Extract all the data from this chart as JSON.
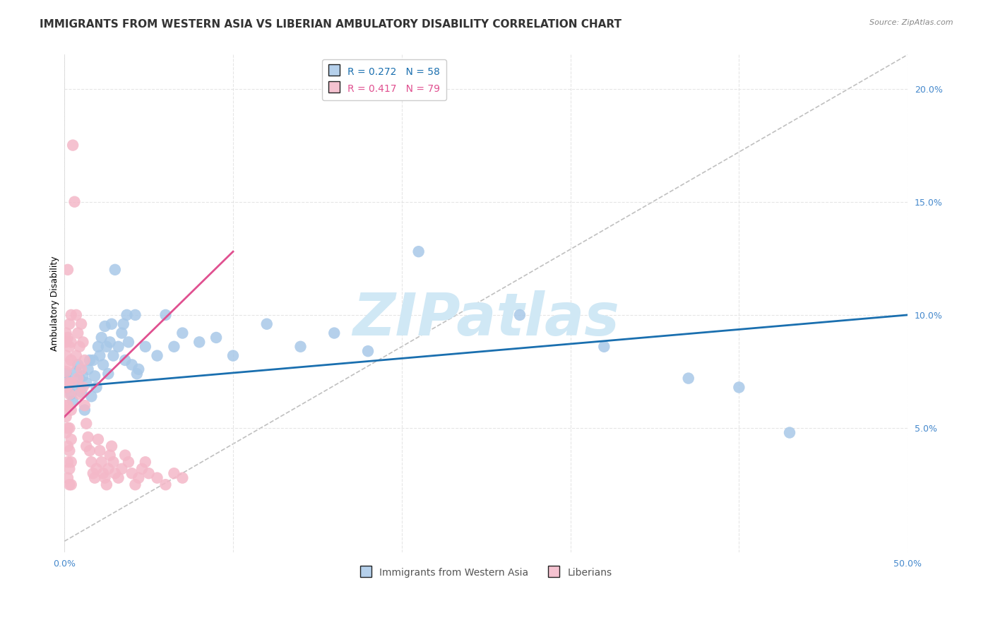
{
  "title": "IMMIGRANTS FROM WESTERN ASIA VS LIBERIAN AMBULATORY DISABILITY CORRELATION CHART",
  "source": "Source: ZipAtlas.com",
  "ylabel": "Ambulatory Disability",
  "watermark": "ZIPatlas",
  "legend_blue_label": "R = 0.272   N = 58",
  "legend_pink_label": "R = 0.417   N = 79",
  "legend_blue_series": "Immigrants from Western Asia",
  "legend_pink_series": "Liberians",
  "xlim": [
    0.0,
    0.5
  ],
  "ylim": [
    -0.005,
    0.215
  ],
  "yticks": [
    0.05,
    0.1,
    0.15,
    0.2
  ],
  "ytick_labels": [
    "5.0%",
    "10.0%",
    "15.0%",
    "20.0%"
  ],
  "xticks": [
    0.0,
    0.1,
    0.2,
    0.3,
    0.4,
    0.5
  ],
  "xtick_labels": [
    "0.0%",
    "",
    "",
    "",
    "",
    "50.0%"
  ],
  "blue_scatter": [
    [
      0.001,
      0.074
    ],
    [
      0.002,
      0.068
    ],
    [
      0.003,
      0.071
    ],
    [
      0.004,
      0.065
    ],
    [
      0.005,
      0.062
    ],
    [
      0.006,
      0.069
    ],
    [
      0.007,
      0.075
    ],
    [
      0.008,
      0.078
    ],
    [
      0.009,
      0.072
    ],
    [
      0.01,
      0.066
    ],
    [
      0.011,
      0.073
    ],
    [
      0.012,
      0.058
    ],
    [
      0.013,
      0.07
    ],
    [
      0.014,
      0.076
    ],
    [
      0.015,
      0.08
    ],
    [
      0.016,
      0.064
    ],
    [
      0.017,
      0.08
    ],
    [
      0.018,
      0.073
    ],
    [
      0.019,
      0.068
    ],
    [
      0.02,
      0.086
    ],
    [
      0.021,
      0.082
    ],
    [
      0.022,
      0.09
    ],
    [
      0.023,
      0.078
    ],
    [
      0.024,
      0.095
    ],
    [
      0.025,
      0.086
    ],
    [
      0.026,
      0.074
    ],
    [
      0.027,
      0.088
    ],
    [
      0.028,
      0.096
    ],
    [
      0.029,
      0.082
    ],
    [
      0.03,
      0.12
    ],
    [
      0.032,
      0.086
    ],
    [
      0.034,
      0.092
    ],
    [
      0.035,
      0.096
    ],
    [
      0.036,
      0.08
    ],
    [
      0.037,
      0.1
    ],
    [
      0.038,
      0.088
    ],
    [
      0.04,
      0.078
    ],
    [
      0.042,
      0.1
    ],
    [
      0.043,
      0.074
    ],
    [
      0.044,
      0.076
    ],
    [
      0.048,
      0.086
    ],
    [
      0.055,
      0.082
    ],
    [
      0.06,
      0.1
    ],
    [
      0.065,
      0.086
    ],
    [
      0.07,
      0.092
    ],
    [
      0.08,
      0.088
    ],
    [
      0.09,
      0.09
    ],
    [
      0.1,
      0.082
    ],
    [
      0.12,
      0.096
    ],
    [
      0.14,
      0.086
    ],
    [
      0.16,
      0.092
    ],
    [
      0.18,
      0.084
    ],
    [
      0.21,
      0.128
    ],
    [
      0.27,
      0.1
    ],
    [
      0.32,
      0.086
    ],
    [
      0.37,
      0.072
    ],
    [
      0.4,
      0.068
    ],
    [
      0.43,
      0.048
    ]
  ],
  "pink_scatter": [
    [
      0.001,
      0.075
    ],
    [
      0.001,
      0.082
    ],
    [
      0.001,
      0.088
    ],
    [
      0.001,
      0.092
    ],
    [
      0.001,
      0.068
    ],
    [
      0.001,
      0.06
    ],
    [
      0.001,
      0.055
    ],
    [
      0.001,
      0.048
    ],
    [
      0.002,
      0.12
    ],
    [
      0.002,
      0.09
    ],
    [
      0.002,
      0.07
    ],
    [
      0.002,
      0.06
    ],
    [
      0.002,
      0.05
    ],
    [
      0.002,
      0.042
    ],
    [
      0.002,
      0.035
    ],
    [
      0.002,
      0.028
    ],
    [
      0.003,
      0.096
    ],
    [
      0.003,
      0.086
    ],
    [
      0.003,
      0.078
    ],
    [
      0.003,
      0.065
    ],
    [
      0.003,
      0.05
    ],
    [
      0.003,
      0.04
    ],
    [
      0.003,
      0.032
    ],
    [
      0.003,
      0.025
    ],
    [
      0.004,
      0.1
    ],
    [
      0.004,
      0.088
    ],
    [
      0.004,
      0.08
    ],
    [
      0.004,
      0.07
    ],
    [
      0.004,
      0.058
    ],
    [
      0.004,
      0.045
    ],
    [
      0.004,
      0.035
    ],
    [
      0.004,
      0.025
    ],
    [
      0.005,
      0.175
    ],
    [
      0.006,
      0.15
    ],
    [
      0.007,
      0.1
    ],
    [
      0.007,
      0.082
    ],
    [
      0.008,
      0.092
    ],
    [
      0.008,
      0.072
    ],
    [
      0.009,
      0.086
    ],
    [
      0.009,
      0.065
    ],
    [
      0.01,
      0.096
    ],
    [
      0.01,
      0.076
    ],
    [
      0.011,
      0.088
    ],
    [
      0.011,
      0.068
    ],
    [
      0.012,
      0.08
    ],
    [
      0.012,
      0.06
    ],
    [
      0.013,
      0.052
    ],
    [
      0.013,
      0.042
    ],
    [
      0.014,
      0.046
    ],
    [
      0.015,
      0.04
    ],
    [
      0.016,
      0.035
    ],
    [
      0.017,
      0.03
    ],
    [
      0.018,
      0.028
    ],
    [
      0.019,
      0.032
    ],
    [
      0.02,
      0.045
    ],
    [
      0.021,
      0.04
    ],
    [
      0.022,
      0.035
    ],
    [
      0.023,
      0.03
    ],
    [
      0.024,
      0.028
    ],
    [
      0.025,
      0.025
    ],
    [
      0.026,
      0.032
    ],
    [
      0.027,
      0.038
    ],
    [
      0.028,
      0.042
    ],
    [
      0.029,
      0.035
    ],
    [
      0.03,
      0.03
    ],
    [
      0.032,
      0.028
    ],
    [
      0.034,
      0.032
    ],
    [
      0.036,
      0.038
    ],
    [
      0.038,
      0.035
    ],
    [
      0.04,
      0.03
    ],
    [
      0.042,
      0.025
    ],
    [
      0.044,
      0.028
    ],
    [
      0.046,
      0.032
    ],
    [
      0.048,
      0.035
    ],
    [
      0.05,
      0.03
    ],
    [
      0.055,
      0.028
    ],
    [
      0.06,
      0.025
    ],
    [
      0.065,
      0.03
    ],
    [
      0.07,
      0.028
    ]
  ],
  "blue_line_x": [
    0.0,
    0.5
  ],
  "blue_line_y": [
    0.068,
    0.1
  ],
  "pink_line_x": [
    0.0,
    0.1
  ],
  "pink_line_y": [
    0.055,
    0.128
  ],
  "diag_line_x": [
    0.0,
    0.5
  ],
  "diag_line_y": [
    0.0,
    0.215
  ],
  "bg_color": "#ffffff",
  "plot_bg_color": "#ffffff",
  "grid_color": "#e0e0e0",
  "blue_color": "#a8c8e8",
  "pink_color": "#f4b8c8",
  "blue_line_color": "#1a6faf",
  "pink_line_color": "#e05090",
  "diag_line_color": "#c0c0c0",
  "watermark_color": "#d0e8f5",
  "tick_color": "#4488cc",
  "title_fontsize": 11,
  "label_fontsize": 9,
  "legend_fontsize": 10
}
